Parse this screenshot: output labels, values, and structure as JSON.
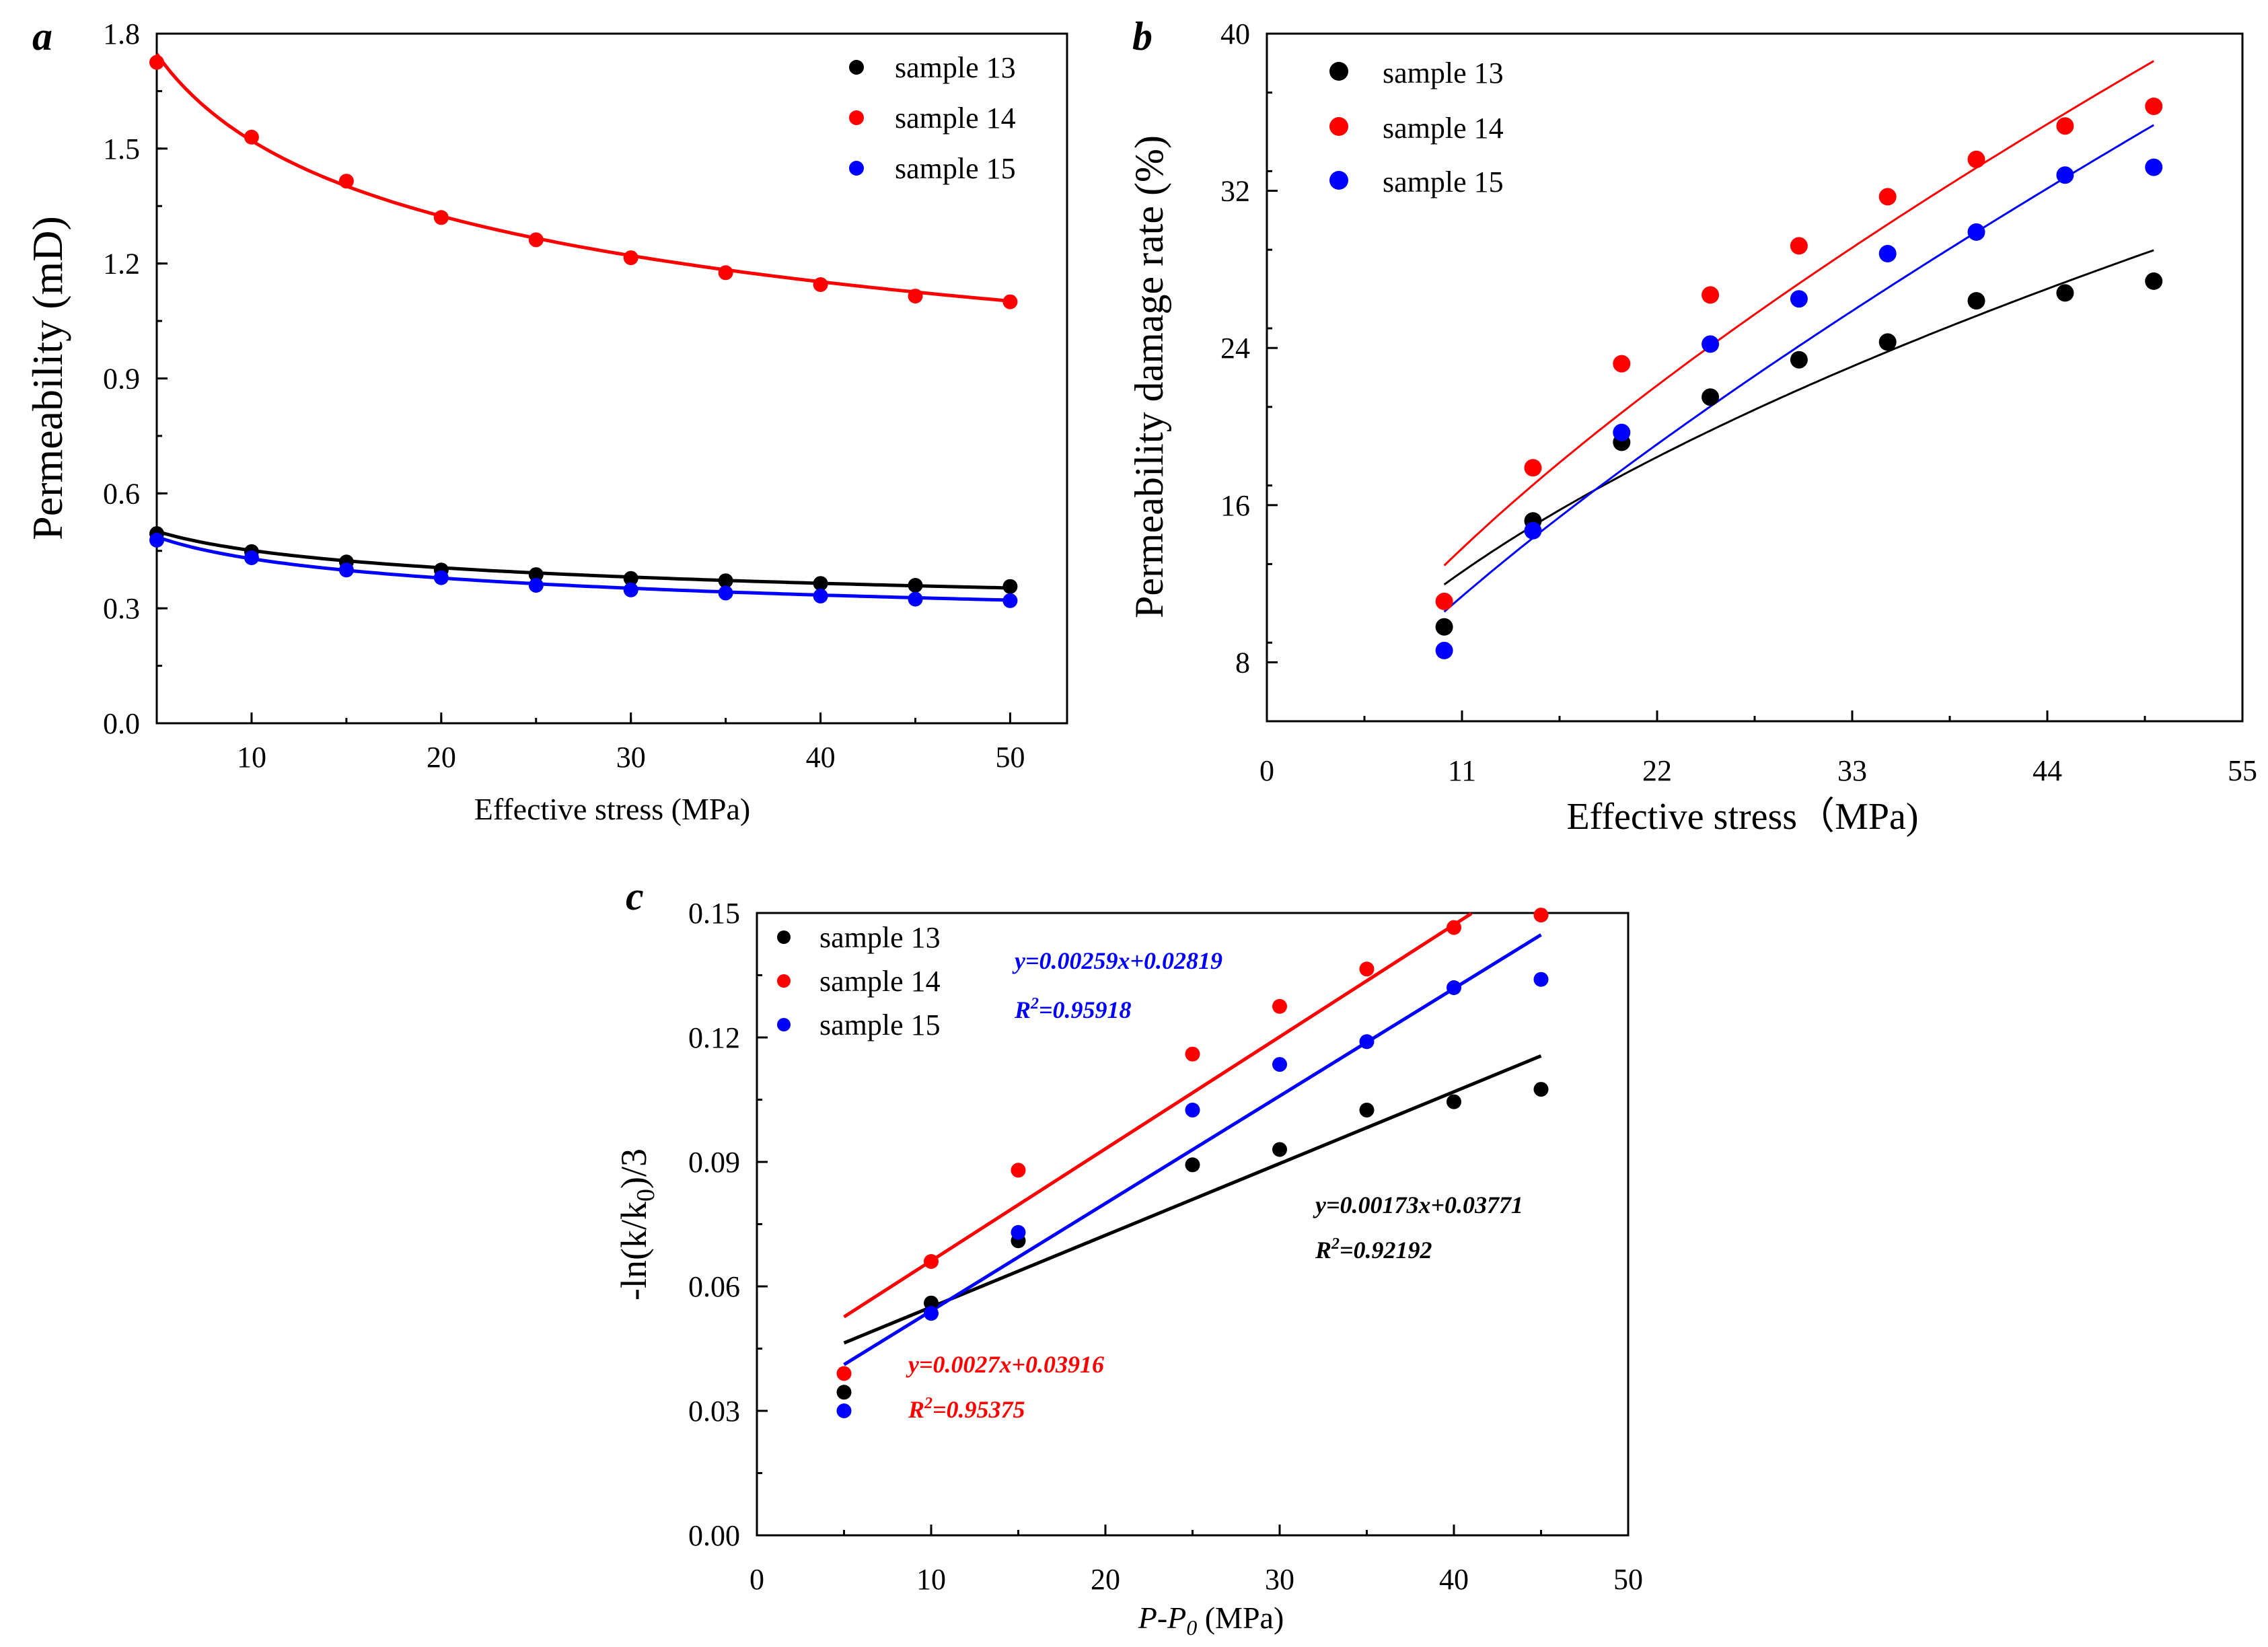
{
  "figure": {
    "background": "#ffffff",
    "colors": {
      "sample13": "#000000",
      "sample14": "#ff0000",
      "sample15": "#0000ff"
    }
  },
  "chart_data": [
    {
      "panel": "a",
      "type": "scatter",
      "xlabel": "Effective stress (MPa)",
      "ylabel": "Permeability (mD)",
      "xlim": [
        5,
        53
      ],
      "ylim": [
        0,
        1.8
      ],
      "xticks": [
        10,
        20,
        30,
        40,
        50
      ],
      "yticks": [
        0.0,
        0.3,
        0.6,
        0.9,
        1.2,
        1.5,
        1.8
      ],
      "ytick_decimals": 1,
      "legend": {
        "position": "top-right"
      },
      "series": [
        {
          "name": "sample 13",
          "color": "#000000",
          "x": [
            5,
            10,
            15,
            20,
            25,
            30,
            35,
            40,
            45,
            50
          ],
          "y": [
            0.495,
            0.448,
            0.421,
            0.4,
            0.388,
            0.378,
            0.372,
            0.365,
            0.36,
            0.357
          ],
          "fit": {
            "kind": "power",
            "a": 0.64,
            "b": -0.152
          }
        },
        {
          "name": "sample 14",
          "color": "#ff0000",
          "x": [
            5,
            10,
            15,
            20,
            25,
            30,
            35,
            40,
            45,
            50
          ],
          "y": [
            1.725,
            1.53,
            1.415,
            1.32,
            1.262,
            1.215,
            1.176,
            1.145,
            1.115,
            1.1
          ],
          "fit": {
            "kind": "power",
            "a": 2.41,
            "b": -0.2
          }
        },
        {
          "name": "sample 15",
          "color": "#0000ff",
          "x": [
            5,
            10,
            15,
            20,
            25,
            30,
            35,
            40,
            45,
            50
          ],
          "y": [
            0.478,
            0.432,
            0.4,
            0.38,
            0.36,
            0.348,
            0.34,
            0.332,
            0.324,
            0.32
          ],
          "fit": {
            "kind": "power",
            "a": 0.65,
            "b": -0.18
          }
        }
      ]
    },
    {
      "panel": "b",
      "type": "scatter",
      "xlabel": "Effective stress（MPa)",
      "ylabel": "Permeability damage rate (%)",
      "xlim": [
        0,
        55
      ],
      "ylim": [
        5,
        40
      ],
      "xticks": [
        0,
        11,
        22,
        33,
        44,
        55
      ],
      "yticks": [
        8,
        16,
        24,
        32,
        40
      ],
      "ytick_decimals": 0,
      "legend": {
        "position": "top-left"
      },
      "series": [
        {
          "name": "sample 13",
          "color": "#000000",
          "x": [
            10,
            15,
            20,
            25,
            30,
            35,
            40,
            45,
            50
          ],
          "y": [
            9.8,
            15.2,
            19.2,
            21.5,
            23.4,
            24.3,
            26.4,
            26.8,
            27.4
          ],
          "fit": {
            "kind": "power",
            "a": 3.37,
            "b": 0.55,
            "x": [
              10,
              50
            ]
          }
        },
        {
          "name": "sample 14",
          "color": "#ff0000",
          "x": [
            10,
            15,
            20,
            25,
            30,
            35,
            40,
            45,
            50
          ],
          "y": [
            11.1,
            17.9,
            23.2,
            26.7,
            29.2,
            31.7,
            33.6,
            35.3,
            36.3
          ],
          "fit": {
            "kind": "power",
            "a": 2.7,
            "b": 0.68,
            "x": [
              10,
              50
            ]
          }
        },
        {
          "name": "sample 15",
          "color": "#0000ff",
          "x": [
            10,
            15,
            20,
            25,
            30,
            35,
            40,
            45,
            50
          ],
          "y": [
            8.6,
            14.7,
            19.7,
            24.2,
            26.5,
            28.8,
            29.9,
            32.8,
            33.2
          ],
          "fit": {
            "kind": "power",
            "a": 1.88,
            "b": 0.75,
            "x": [
              10,
              50
            ]
          }
        }
      ]
    },
    {
      "panel": "c",
      "type": "scatter",
      "xlabel_main": "P-P",
      "xlabel_sub": "0",
      "xlabel_unit": " (MPa)",
      "ylabel_main": "-ln(k/k",
      "ylabel_sub": "0",
      "ylabel_end": ")/3",
      "xlim": [
        0,
        50
      ],
      "ylim": [
        0,
        0.15
      ],
      "xticks": [
        0,
        10,
        20,
        30,
        40,
        50
      ],
      "yticks": [
        0.0,
        0.03,
        0.06,
        0.09,
        0.12,
        0.15
      ],
      "ytick_decimals": 2,
      "legend": {
        "position": "top-left"
      },
      "series": [
        {
          "name": "sample 13",
          "color": "#000000",
          "x": [
            5,
            10,
            15,
            25,
            30,
            35,
            40,
            45
          ],
          "y": [
            0.0345,
            0.056,
            0.071,
            0.0893,
            0.093,
            0.1025,
            0.1045,
            0.1075
          ],
          "fit": {
            "kind": "linear",
            "slope": 0.00173,
            "intercept": 0.03771,
            "x": [
              5,
              45
            ]
          },
          "equation": "y=0.00173x+0.03771",
          "r2_label": "R",
          "r2_sup": "2",
          "r2_value": "=0.92192"
        },
        {
          "name": "sample 14",
          "color": "#ff0000",
          "x": [
            5,
            10,
            15,
            25,
            30,
            35,
            40,
            45
          ],
          "y": [
            0.039,
            0.066,
            0.088,
            0.116,
            0.1275,
            0.1365,
            0.1465,
            0.1495
          ],
          "fit": {
            "kind": "linear",
            "slope": 0.0027,
            "intercept": 0.03916,
            "x": [
              5,
              41
            ]
          },
          "equation": "y=0.0027x+0.03916",
          "r2_label": "R",
          "r2_sup": "2",
          "r2_value": "=0.95375"
        },
        {
          "name": "sample 15",
          "color": "#0000ff",
          "x": [
            5,
            10,
            15,
            25,
            30,
            35,
            40,
            45
          ],
          "y": [
            0.03,
            0.0535,
            0.073,
            0.1025,
            0.1135,
            0.119,
            0.132,
            0.134
          ],
          "fit": {
            "kind": "linear",
            "slope": 0.00259,
            "intercept": 0.02819,
            "x": [
              5,
              45
            ]
          },
          "equation": "y=0.00259x+0.02819",
          "r2_label": "R",
          "r2_sup": "2",
          "r2_value": "=0.95918"
        }
      ]
    }
  ]
}
